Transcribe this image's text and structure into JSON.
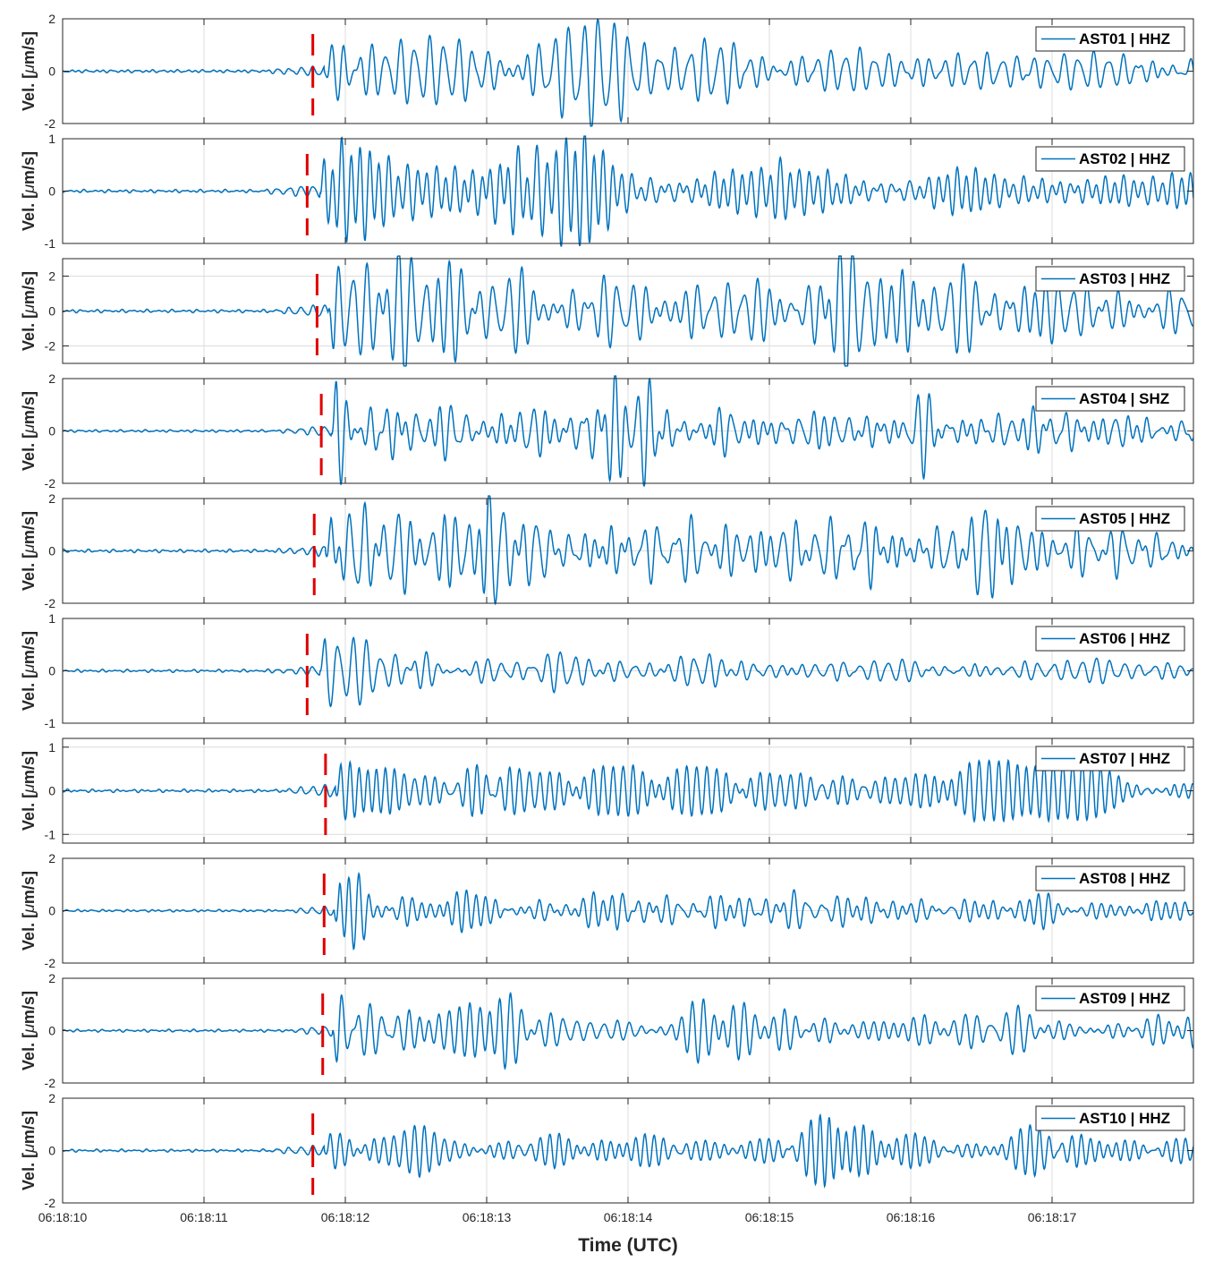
{
  "chart_data": {
    "type": "line",
    "xlabel": "Time (UTC)",
    "ylabel_prefix": "Vel. [",
    "ylabel_mu": "μ",
    "ylabel_suffix": "m/s]",
    "xlim": [
      "06:18:10",
      "06:18:18"
    ],
    "x_ticks": [
      "06:18:10",
      "06:18:11",
      "06:18:12",
      "06:18:13",
      "06:18:14",
      "06:18:15",
      "06:18:16",
      "06:18:17"
    ],
    "grid": true,
    "legend_position": "top-right",
    "line_color": "#0072BD",
    "pick_color": "#E00000",
    "panels": [
      {
        "legend": "AST01 | HHZ",
        "ylim": [
          -2,
          2
        ],
        "yticks": [
          -2,
          0,
          2
        ],
        "pick_time": "06:18:11.77",
        "onset_time": "06:18:11.85",
        "peak_velocity": 2.0,
        "coda_level": 0.45
      },
      {
        "legend": "AST02 | HHZ",
        "ylim": [
          -1,
          1
        ],
        "yticks": [
          -1,
          0,
          1
        ],
        "pick_time": "06:18:11.73",
        "onset_time": "06:18:11.82",
        "peak_velocity": 1.0,
        "coda_level": 0.35
      },
      {
        "legend": "AST03 | HHZ",
        "ylim": [
          -3,
          3
        ],
        "yticks": [
          -2,
          0,
          2
        ],
        "pick_time": "06:18:11.80",
        "onset_time": "06:18:11.88",
        "peak_velocity": 3.0,
        "coda_level": 0.6
      },
      {
        "legend": "AST04 | SHZ",
        "ylim": [
          -2,
          2
        ],
        "yticks": [
          -2,
          0,
          2
        ],
        "pick_time": "06:18:11.83",
        "onset_time": "06:18:11.90",
        "peak_velocity": 1.6,
        "coda_level": 0.45
      },
      {
        "legend": "AST05 | HHZ",
        "ylim": [
          -2,
          2
        ],
        "yticks": [
          -2,
          0,
          2
        ],
        "pick_time": "06:18:11.78",
        "onset_time": "06:18:11.86",
        "peak_velocity": 2.0,
        "coda_level": 0.5
      },
      {
        "legend": "AST06 | HHZ",
        "ylim": [
          -1,
          1
        ],
        "yticks": [
          -1,
          0,
          1
        ],
        "pick_time": "06:18:11.73",
        "onset_time": "06:18:11.82",
        "peak_velocity": 0.9,
        "coda_level": 0.25
      },
      {
        "legend": "AST07 | HHZ",
        "ylim": [
          -1.2,
          1.2
        ],
        "yticks": [
          -1,
          0,
          1
        ],
        "pick_time": "06:18:11.86",
        "onset_time": "06:18:11.93",
        "peak_velocity": 1.2,
        "coda_level": 0.4
      },
      {
        "legend": "AST08 | HHZ",
        "ylim": [
          -2,
          2
        ],
        "yticks": [
          -2,
          0,
          2
        ],
        "pick_time": "06:18:11.85",
        "onset_time": "06:18:11.92",
        "peak_velocity": 1.6,
        "coda_level": 0.3
      },
      {
        "legend": "AST09 | HHZ",
        "ylim": [
          -2,
          2
        ],
        "yticks": [
          -2,
          0,
          2
        ],
        "pick_time": "06:18:11.84",
        "onset_time": "06:18:11.91",
        "peak_velocity": 1.7,
        "coda_level": 0.35
      },
      {
        "legend": "AST10 | HHZ",
        "ylim": [
          -2,
          2
        ],
        "yticks": [
          -2,
          0,
          2
        ],
        "pick_time": "06:18:11.77",
        "onset_time": "06:18:11.85",
        "peak_velocity": 1.7,
        "coda_level": 0.3
      }
    ]
  }
}
